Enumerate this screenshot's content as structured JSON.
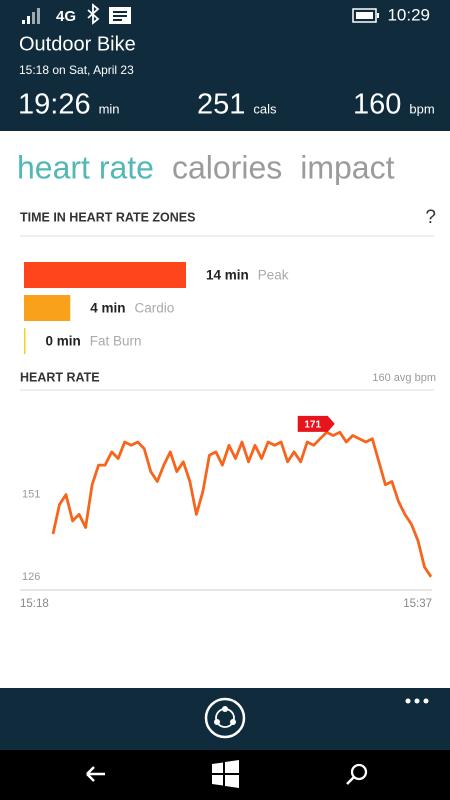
{
  "status_bar": {
    "network": "4G",
    "time": "10:29"
  },
  "header": {
    "title": "Outdoor Bike",
    "subtitle": "15:18 on Sat, April 23"
  },
  "stats": [
    {
      "value": "19:26",
      "unit": "min"
    },
    {
      "value": 251,
      "unit": "cals"
    },
    {
      "value": 160,
      "unit": "bpm"
    }
  ],
  "tabs": [
    "heart rate",
    "calories",
    "impact"
  ],
  "chart_data": [
    {
      "type": "hbar",
      "title": "TIME IN HEART RATE ZONES",
      "help": "?",
      "categories": [
        "Peak",
        "Cardio",
        "Fat Burn"
      ],
      "values": [
        14,
        4,
        0
      ],
      "value_labels": [
        "14 min",
        "4 min",
        "0 min"
      ],
      "colors": [
        "#ff451c",
        "#f9a11b",
        "#f5d21e"
      ]
    },
    {
      "type": "line",
      "title": "HEART RATE",
      "subtitle": "160 avg bpm",
      "color": "#f7641c",
      "values": [
        139,
        148,
        151,
        143,
        145,
        141,
        154,
        160,
        160,
        164,
        162,
        167,
        166,
        167,
        165,
        158,
        155,
        160,
        164,
        158,
        161,
        155,
        145,
        152,
        163,
        164,
        160,
        166,
        162,
        167,
        161,
        166,
        162,
        167,
        166,
        167,
        161,
        164,
        161,
        167,
        166,
        168,
        170,
        169,
        170,
        167,
        169,
        168,
        167,
        168,
        161,
        154,
        155,
        149,
        145,
        142,
        137,
        129,
        126
      ],
      "ylim": [
        122,
        181
      ],
      "yticks": [
        126,
        151
      ],
      "xlabels": [
        "15:18",
        "15:37"
      ],
      "peak_label": 171
    }
  ]
}
